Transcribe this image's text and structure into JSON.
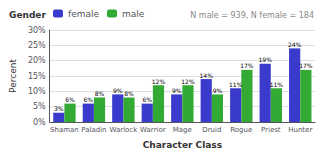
{
  "chart_data": {
    "type": "bar",
    "categories": [
      "Shaman",
      "Paladin",
      "Warlock",
      "Warrior",
      "Mage",
      "Druid",
      "Rogue",
      "Priest",
      "Hunter"
    ],
    "series": [
      {
        "name": "female",
        "color": "#3a3acc",
        "values": [
          3,
          6,
          9,
          6,
          9,
          14,
          11,
          19,
          24
        ],
        "value_labels": [
          "3%",
          "6%",
          "9%",
          "6%",
          "9%",
          "14%",
          "11%",
          "19%",
          "24%"
        ]
      },
      {
        "name": "male",
        "color": "#33aa33",
        "values": [
          6,
          8,
          8,
          12,
          12,
          9,
          17,
          11,
          17
        ],
        "value_labels": [
          "6%",
          "8%",
          "8%",
          "12%",
          "12%",
          "9%",
          "17%",
          "11%",
          "17%"
        ]
      }
    ],
    "xlabel": "Character Class",
    "ylabel": "Percent",
    "ylim": [
      0,
      30
    ],
    "yticks": [
      {
        "value": 0,
        "label": "0%"
      },
      {
        "value": 5,
        "label": "5%"
      },
      {
        "value": 10,
        "label": "10%"
      },
      {
        "value": 15,
        "label": "15%"
      },
      {
        "value": 20,
        "label": "20%"
      },
      {
        "value": 25,
        "label": "25%"
      },
      {
        "value": 30,
        "label": "30%"
      }
    ],
    "legend_title": "Gender",
    "legend": "upper left",
    "annotations": [
      "N male = 939, N female = 184"
    ],
    "data_labels": true,
    "grid": true
  }
}
